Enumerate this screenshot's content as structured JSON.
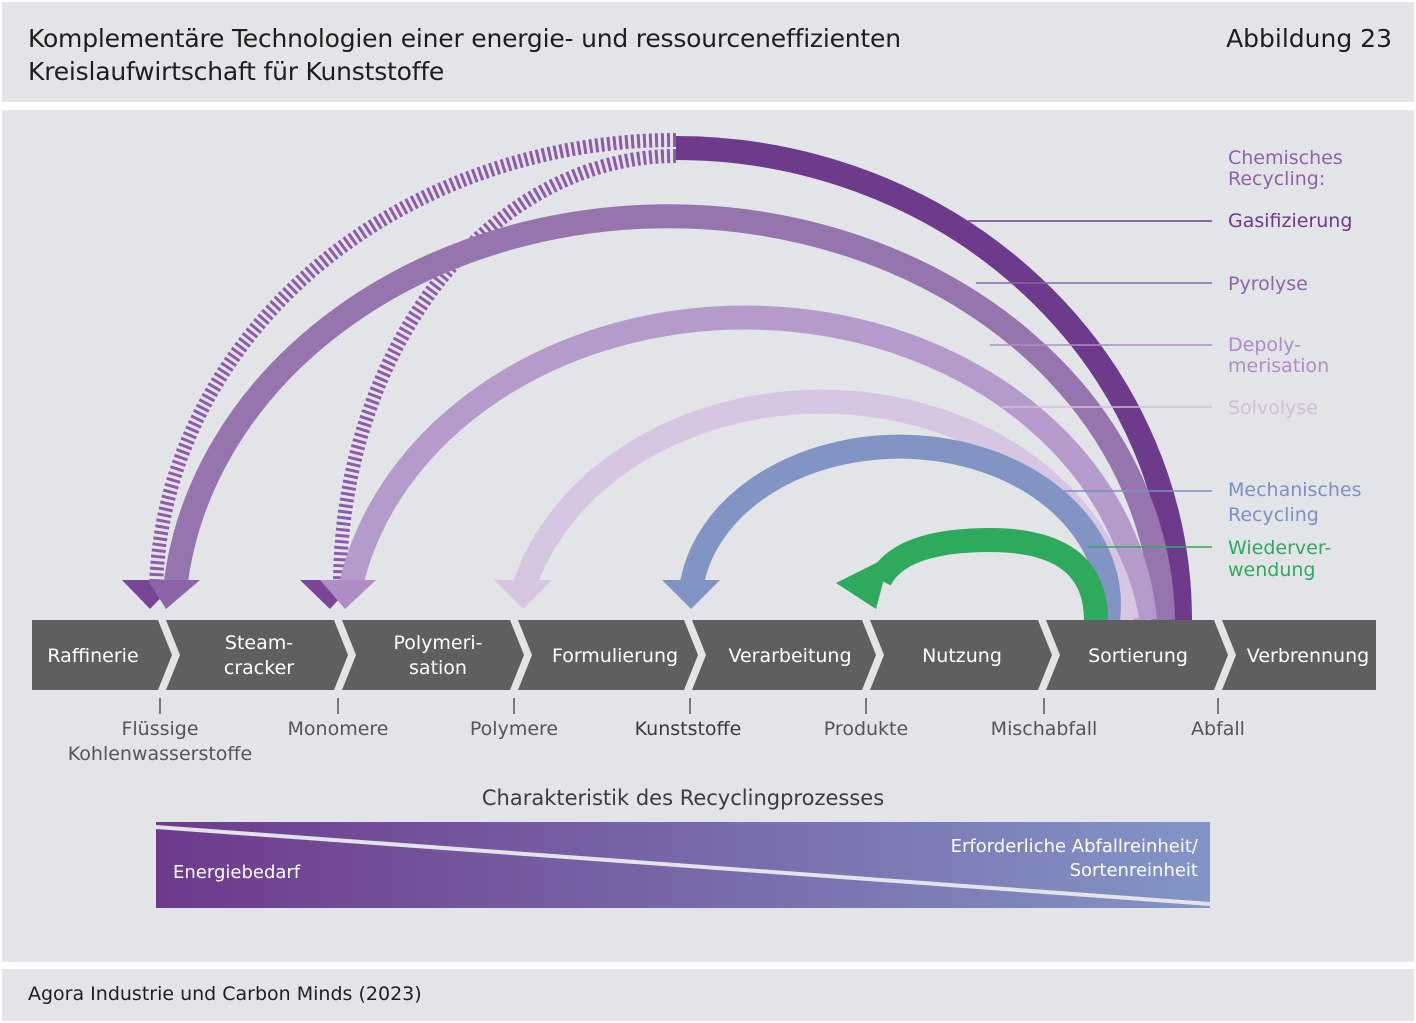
{
  "header": {
    "title_line1": "Komplementäre Technologien einer energie- und ressourceneffizienten",
    "title_line2": "Kreislaufwirtschaft für Kunststoffe",
    "figure_number": "Abbildung 23"
  },
  "legend": {
    "group_heading_line1": "Chemisches",
    "group_heading_line2": "Recycling:",
    "items": [
      {
        "line1": "Gasifizierung",
        "line2": "",
        "color": "#6e3a8c"
      },
      {
        "line1": "Pyrolyse",
        "line2": "",
        "color": "#8e64a8"
      },
      {
        "line1": "Depoly-",
        "line2": "merisation",
        "color": "#ad8dc4"
      },
      {
        "line1": "Solvolyse",
        "line2": "",
        "color": "#d1bcdc"
      },
      {
        "line1": "Mechanisches",
        "line2": "Recycling",
        "color": "#7d90c3"
      },
      {
        "line1": "Wiederver-",
        "line2": "wendung",
        "color": "#2eaa5c"
      }
    ]
  },
  "stages": [
    {
      "line1": "Raffinerie",
      "line2": ""
    },
    {
      "line1": "Steam-",
      "line2": "cracker"
    },
    {
      "line1": "Polymeri-",
      "line2": "sation"
    },
    {
      "line1": "Formulierung",
      "line2": ""
    },
    {
      "line1": "Verarbeitung",
      "line2": ""
    },
    {
      "line1": "Nutzung",
      "line2": ""
    },
    {
      "line1": "Sortierung",
      "line2": ""
    },
    {
      "line1": "Verbrennung",
      "line2": ""
    }
  ],
  "materials": [
    {
      "line1": "Flüssige",
      "line2": "Kohlenwasserstoffe"
    },
    {
      "line1": "Monomere",
      "line2": ""
    },
    {
      "line1": "Polymere",
      "line2": ""
    },
    {
      "line1": "Kunststoffe",
      "line2": ""
    },
    {
      "line1": "Produkte",
      "line2": ""
    },
    {
      "line1": "Mischabfall",
      "line2": ""
    },
    {
      "line1": "Abfall",
      "line2": ""
    }
  ],
  "characteristic": {
    "title": "Charakteristik des Recyclingprozesses",
    "left_label": "Energiebedarf",
    "right_label_line1": "Erforderliche Abfallreinheit/",
    "right_label_line2": "Sortenreinheit",
    "color_start": "#6e3a8c",
    "color_end": "#8295c6"
  },
  "footer": {
    "source": "Agora Industrie und Carbon Minds (2023)"
  },
  "colors": {
    "panel_background": "#e3e4e8",
    "process_bar": "#5f5f5f",
    "gasifizierung": "#6e3a8c",
    "pyrolyse": "#8e64a8",
    "depolymerisation": "#ad8dc4",
    "solvolyse": "#d1bcdc",
    "mechanisches_recycling": "#7d90c3",
    "wiederverwendung": "#2eaa5c"
  }
}
